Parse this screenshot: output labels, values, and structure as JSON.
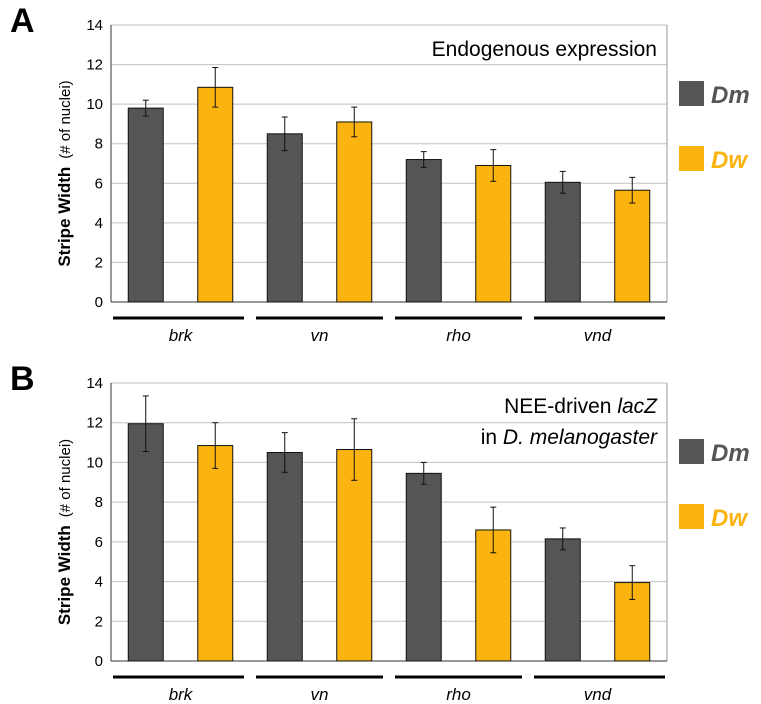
{
  "colors": {
    "dm": "#555555",
    "dw": "#fbb40f",
    "grid": "#c0c0c0",
    "frame": "#9a9a9a"
  },
  "legend": [
    {
      "key": "dm",
      "label": "Dm"
    },
    {
      "key": "dw",
      "label": "Dw"
    }
  ],
  "chart_data": [
    {
      "panel": "A",
      "type": "bar",
      "title_lines": [
        [
          {
            "text": "Endogenous expression",
            "italic": false
          }
        ]
      ],
      "ylabel": {
        "main": "Stripe Width",
        "unit": "(# of nuclei)"
      },
      "ylim": [
        0,
        14
      ],
      "yticks": [
        "0",
        "2",
        "4",
        "6",
        "8",
        "10",
        "12",
        "14"
      ],
      "categories": [
        "brk",
        "vn",
        "rho",
        "vnd"
      ],
      "series": [
        {
          "name": "Dm",
          "values": [
            9.8,
            8.5,
            7.2,
            6.05
          ],
          "errors": [
            0.4,
            0.85,
            0.4,
            0.55
          ]
        },
        {
          "name": "Dw",
          "values": [
            10.85,
            9.1,
            6.9,
            5.65
          ],
          "errors": [
            1.0,
            0.75,
            0.8,
            0.65
          ]
        }
      ]
    },
    {
      "panel": "B",
      "type": "bar",
      "title_lines": [
        [
          {
            "text": "NEE-driven ",
            "italic": false
          },
          {
            "text": "lacZ",
            "italic": true
          }
        ],
        [
          {
            "text": "in ",
            "italic": false
          },
          {
            "text": "D. melanogaster",
            "italic": true
          }
        ]
      ],
      "ylabel": {
        "main": "Stripe Width",
        "unit": "(# of nuclei)"
      },
      "ylim": [
        0,
        14
      ],
      "yticks": [
        "0",
        "2",
        "4",
        "6",
        "8",
        "10",
        "12",
        "14"
      ],
      "categories": [
        "brk",
        "vn",
        "rho",
        "vnd"
      ],
      "series": [
        {
          "name": "Dm",
          "values": [
            11.95,
            10.5,
            9.45,
            6.15
          ],
          "errors": [
            1.4,
            1.0,
            0.55,
            0.55
          ]
        },
        {
          "name": "Dw",
          "values": [
            10.85,
            10.65,
            6.6,
            3.95
          ],
          "errors": [
            1.15,
            1.55,
            1.15,
            0.85
          ]
        }
      ]
    }
  ]
}
